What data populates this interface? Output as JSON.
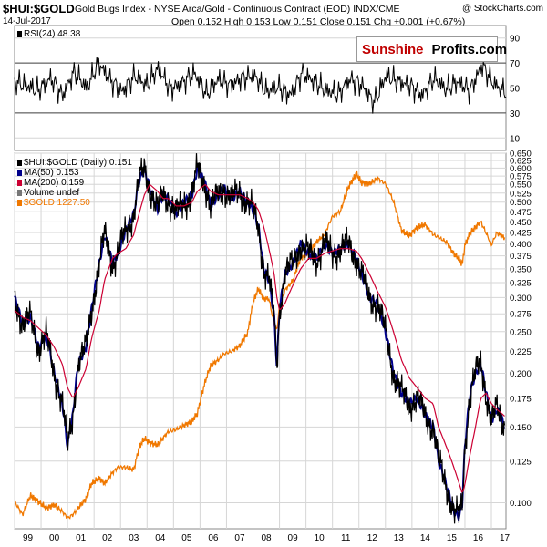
{
  "header": {
    "symbol": "$HUI:$GOLD",
    "description": "Gold Bugs Index - NYSE Arca/Gold - Continuous Contract (EOD) INDX/CME",
    "watermark": "@ StockCharts.com",
    "date": "14-Jul-2017",
    "ohlc": "Open 0.152  High 0.153  Low 0.151  Close 0.151  Chg +0.001 (+0.67%)"
  },
  "brand": {
    "part1": "Sunshine",
    "part2": "Profits.com"
  },
  "rsi_panel": {
    "legend": "RSI(24) 48.38",
    "ticks": [
      "90",
      "70",
      "50",
      "30",
      "10"
    ]
  },
  "main_legend": {
    "title": "$HUI:$GOLD (Daily) 0.151",
    "ma50": "MA(50) 0.153",
    "ma200": "MA(200) 0.159",
    "volume": "Volume undef",
    "gold": "$GOLD 1227.50"
  },
  "colors": {
    "price": "#000000",
    "ma50": "#00008b",
    "ma200": "#cc0033",
    "gold": "#f07800",
    "grid": "#d6d6d6"
  },
  "chart_data": [
    {
      "type": "line",
      "series": [
        {
          "name": "RSI(24)",
          "values": [
            55,
            52,
            48,
            58,
            44,
            63,
            50,
            70,
            56,
            47,
            60,
            52,
            66,
            49,
            54,
            62,
            45,
            57,
            52,
            58,
            60,
            47,
            51,
            44,
            62,
            55,
            48,
            45,
            57,
            52,
            38,
            60,
            55,
            52,
            44,
            58,
            49,
            55,
            48,
            68,
            53,
            47
          ]
        }
      ],
      "y_range": [
        0,
        100
      ],
      "ticks": [
        90,
        70,
        50,
        30,
        10
      ],
      "reference_lines": [
        70,
        50,
        30
      ],
      "grid": true
    },
    {
      "type": "line",
      "x_ticks": [
        "99",
        "00",
        "01",
        "02",
        "03",
        "04",
        "05",
        "06",
        "07",
        "08",
        "09",
        "10",
        "11",
        "12",
        "13",
        "14",
        "15",
        "16",
        "17"
      ],
      "y_scale": "log",
      "y_range": [
        0.087,
        0.65
      ],
      "y_ticks": [
        "0.650",
        "0.625",
        "0.600",
        "0.575",
        "0.550",
        "0.525",
        "0.500",
        "0.475",
        "0.450",
        "0.425",
        "0.400",
        "0.375",
        "0.350",
        "0.325",
        "0.300",
        "0.275",
        "0.250",
        "0.225",
        "0.200",
        "0.175",
        "0.150",
        "0.125",
        "0.100"
      ],
      "grid": true,
      "x": [
        1999.0,
        1999.3,
        1999.6,
        1999.9,
        2000.2,
        2000.5,
        2000.8,
        2001.0,
        2001.2,
        2001.4,
        2001.7,
        2001.9,
        2002.2,
        2002.4,
        2002.7,
        2002.9,
        2003.2,
        2003.5,
        2003.7,
        2003.9,
        2004.1,
        2004.4,
        2004.6,
        2004.8,
        2005.1,
        2005.4,
        2005.7,
        2005.9,
        2006.2,
        2006.4,
        2006.7,
        2006.9,
        2007.2,
        2007.5,
        2007.8,
        2008.0,
        2008.2,
        2008.4,
        2008.6,
        2008.8,
        2008.9,
        2009.0,
        2009.2,
        2009.5,
        2009.8,
        2010.1,
        2010.4,
        2010.7,
        2011.0,
        2011.3,
        2011.6,
        2011.9,
        2012.1,
        2012.4,
        2012.7,
        2013.0,
        2013.3,
        2013.6,
        2013.9,
        2014.2,
        2014.5,
        2014.8,
        2015.0,
        2015.3,
        2015.6,
        2015.8,
        2015.9,
        2016.0,
        2016.2,
        2016.4,
        2016.6,
        2016.8,
        2017.0,
        2017.2,
        2017.5
      ],
      "series": [
        {
          "name": "$HUI:$GOLD",
          "values": [
            0.3,
            0.26,
            0.27,
            0.23,
            0.245,
            0.2,
            0.17,
            0.135,
            0.16,
            0.21,
            0.23,
            0.28,
            0.36,
            0.42,
            0.36,
            0.38,
            0.43,
            0.47,
            0.56,
            0.6,
            0.54,
            0.48,
            0.52,
            0.51,
            0.47,
            0.5,
            0.52,
            0.6,
            0.55,
            0.49,
            0.52,
            0.54,
            0.51,
            0.53,
            0.5,
            0.48,
            0.44,
            0.35,
            0.33,
            0.27,
            0.205,
            0.28,
            0.34,
            0.36,
            0.4,
            0.38,
            0.37,
            0.4,
            0.38,
            0.39,
            0.4,
            0.37,
            0.34,
            0.3,
            0.29,
            0.25,
            0.2,
            0.18,
            0.17,
            0.175,
            0.16,
            0.15,
            0.125,
            0.11,
            0.095,
            0.093,
            0.1,
            0.135,
            0.18,
            0.2,
            0.21,
            0.18,
            0.155,
            0.165,
            0.151
          ]
        },
        {
          "name": "MA(200)",
          "values": [
            0.28,
            0.27,
            0.265,
            0.255,
            0.245,
            0.23,
            0.21,
            0.185,
            0.175,
            0.185,
            0.205,
            0.24,
            0.28,
            0.33,
            0.37,
            0.38,
            0.39,
            0.42,
            0.47,
            0.52,
            0.55,
            0.53,
            0.51,
            0.51,
            0.49,
            0.49,
            0.5,
            0.53,
            0.55,
            0.53,
            0.52,
            0.52,
            0.52,
            0.52,
            0.51,
            0.5,
            0.48,
            0.44,
            0.39,
            0.34,
            0.3,
            0.28,
            0.29,
            0.32,
            0.35,
            0.37,
            0.37,
            0.38,
            0.385,
            0.39,
            0.39,
            0.385,
            0.37,
            0.34,
            0.31,
            0.285,
            0.25,
            0.215,
            0.195,
            0.185,
            0.175,
            0.17,
            0.15,
            0.135,
            0.12,
            0.11,
            0.105,
            0.11,
            0.13,
            0.15,
            0.175,
            0.18,
            0.17,
            0.165,
            0.159
          ]
        },
        {
          "name": "$GOLD",
          "values": [
            290,
            270,
            300,
            290,
            280,
            285,
            275,
            265,
            270,
            280,
            295,
            320,
            330,
            320,
            340,
            350,
            350,
            345,
            390,
            410,
            400,
            395,
            410,
            425,
            430,
            440,
            450,
            470,
            560,
            610,
            630,
            650,
            660,
            680,
            730,
            860,
            930,
            880,
            880,
            760,
            740,
            840,
            920,
            970,
            1100,
            1130,
            1200,
            1250,
            1380,
            1420,
            1620,
            1740,
            1660,
            1650,
            1700,
            1650,
            1500,
            1280,
            1240,
            1300,
            1320,
            1250,
            1230,
            1200,
            1120,
            1090,
            1060,
            1180,
            1260,
            1300,
            1340,
            1260,
            1180,
            1260,
            1227.5
          ]
        }
      ]
    }
  ]
}
